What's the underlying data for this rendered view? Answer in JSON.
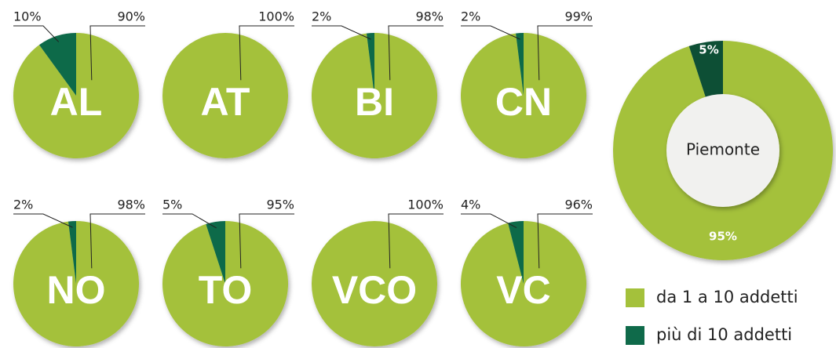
{
  "chart_data": [
    {
      "type": "pie",
      "title": "AL",
      "values": [
        90,
        10
      ],
      "value_labels": [
        "90%",
        "10%"
      ]
    },
    {
      "type": "pie",
      "title": "AT",
      "values": [
        100
      ],
      "value_labels": [
        "100%"
      ]
    },
    {
      "type": "pie",
      "title": "BI",
      "values": [
        98,
        2
      ],
      "value_labels": [
        "98%",
        "2%"
      ]
    },
    {
      "type": "pie",
      "title": "CN",
      "values": [
        99,
        2
      ],
      "value_labels": [
        "99%",
        "2%"
      ]
    },
    {
      "type": "pie",
      "title": "NO",
      "values": [
        98,
        2
      ],
      "value_labels": [
        "98%",
        "2%"
      ]
    },
    {
      "type": "pie",
      "title": "TO",
      "values": [
        95,
        5
      ],
      "value_labels": [
        "95%",
        "5%"
      ]
    },
    {
      "type": "pie",
      "title": "VCO",
      "values": [
        100
      ],
      "value_labels": [
        "100%"
      ]
    },
    {
      "type": "pie",
      "title": "VC",
      "values": [
        96,
        4
      ],
      "value_labels": [
        "96%",
        "4%"
      ]
    },
    {
      "type": "donut",
      "title": "Piemonte",
      "values": [
        95,
        5
      ],
      "value_labels": [
        "95%",
        "5%"
      ]
    }
  ],
  "legend": {
    "items": [
      {
        "name": "da 1 a 10 addetti",
        "color": "#a4c13b"
      },
      {
        "name": "più di 10 addetti",
        "color": "#0f6a4a"
      }
    ]
  }
}
